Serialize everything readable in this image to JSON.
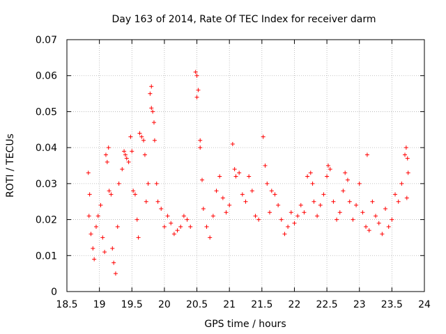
{
  "chart_data": {
    "type": "scatter",
    "title": "Day 163 of 2014, Rate Of TEC Index for receiver darm",
    "xlabel": "GPS time / hours",
    "ylabel": "ROTI / TECUs",
    "xlim": [
      18.5,
      24
    ],
    "ylim": [
      0,
      0.07
    ],
    "xticks": [
      18.5,
      19,
      19.5,
      20,
      20.5,
      21,
      21.5,
      22,
      22.5,
      23,
      23.5,
      24
    ],
    "xtick_labels": [
      "18.5",
      "19",
      "19.5",
      "20",
      "20.5",
      "21",
      "21.5",
      "22",
      "22.5",
      "23",
      "23.5",
      "24"
    ],
    "yticks": [
      0,
      0.01,
      0.02,
      0.03,
      0.04,
      0.05,
      0.06,
      0.07
    ],
    "ytick_labels": [
      "0",
      "0.01",
      "0.02",
      "0.03",
      "0.04",
      "0.05",
      "0.06",
      "0.07"
    ],
    "grid": true,
    "marker": "+",
    "color": "#ff0000",
    "series": [
      {
        "name": "ROTI",
        "points": [
          [
            18.83,
            0.033
          ],
          [
            18.85,
            0.027
          ],
          [
            18.84,
            0.021
          ],
          [
            18.87,
            0.016
          ],
          [
            18.9,
            0.012
          ],
          [
            18.92,
            0.009
          ],
          [
            18.95,
            0.018
          ],
          [
            18.98,
            0.021
          ],
          [
            19.02,
            0.024
          ],
          [
            19.05,
            0.015
          ],
          [
            19.08,
            0.011
          ],
          [
            19.1,
            0.038
          ],
          [
            19.12,
            0.036
          ],
          [
            19.14,
            0.04
          ],
          [
            19.15,
            0.028
          ],
          [
            19.18,
            0.027
          ],
          [
            19.2,
            0.012
          ],
          [
            19.22,
            0.008
          ],
          [
            19.25,
            0.005
          ],
          [
            19.28,
            0.018
          ],
          [
            19.3,
            0.03
          ],
          [
            19.35,
            0.034
          ],
          [
            19.38,
            0.039
          ],
          [
            19.4,
            0.038
          ],
          [
            19.42,
            0.037
          ],
          [
            19.45,
            0.036
          ],
          [
            19.48,
            0.043
          ],
          [
            19.5,
            0.039
          ],
          [
            19.52,
            0.028
          ],
          [
            19.55,
            0.027
          ],
          [
            19.58,
            0.02
          ],
          [
            19.6,
            0.015
          ],
          [
            19.62,
            0.044
          ],
          [
            19.65,
            0.043
          ],
          [
            19.68,
            0.042
          ],
          [
            19.7,
            0.038
          ],
          [
            19.72,
            0.025
          ],
          [
            19.75,
            0.03
          ],
          [
            19.78,
            0.055
          ],
          [
            19.8,
            0.057
          ],
          [
            19.8,
            0.051
          ],
          [
            19.82,
            0.05
          ],
          [
            19.84,
            0.047
          ],
          [
            19.85,
            0.042
          ],
          [
            19.88,
            0.03
          ],
          [
            19.9,
            0.025
          ],
          [
            19.95,
            0.023
          ],
          [
            20.0,
            0.018
          ],
          [
            20.05,
            0.021
          ],
          [
            20.1,
            0.019
          ],
          [
            20.15,
            0.016
          ],
          [
            20.2,
            0.017
          ],
          [
            20.25,
            0.018
          ],
          [
            20.3,
            0.021
          ],
          [
            20.35,
            0.02
          ],
          [
            20.4,
            0.018
          ],
          [
            20.48,
            0.061
          ],
          [
            20.5,
            0.06
          ],
          [
            20.52,
            0.056
          ],
          [
            20.5,
            0.054
          ],
          [
            20.55,
            0.042
          ],
          [
            20.55,
            0.04
          ],
          [
            20.58,
            0.031
          ],
          [
            20.6,
            0.023
          ],
          [
            20.65,
            0.018
          ],
          [
            20.7,
            0.015
          ],
          [
            20.75,
            0.021
          ],
          [
            20.8,
            0.028
          ],
          [
            20.85,
            0.032
          ],
          [
            20.9,
            0.026
          ],
          [
            20.95,
            0.022
          ],
          [
            21.0,
            0.024
          ],
          [
            21.05,
            0.041
          ],
          [
            21.08,
            0.034
          ],
          [
            21.1,
            0.032
          ],
          [
            21.15,
            0.033
          ],
          [
            21.2,
            0.027
          ],
          [
            21.25,
            0.025
          ],
          [
            21.3,
            0.032
          ],
          [
            21.35,
            0.028
          ],
          [
            21.4,
            0.021
          ],
          [
            21.45,
            0.02
          ],
          [
            21.52,
            0.043
          ],
          [
            21.55,
            0.035
          ],
          [
            21.58,
            0.03
          ],
          [
            21.62,
            0.022
          ],
          [
            21.65,
            0.028
          ],
          [
            21.7,
            0.027
          ],
          [
            21.75,
            0.024
          ],
          [
            21.8,
            0.02
          ],
          [
            21.85,
            0.016
          ],
          [
            21.9,
            0.018
          ],
          [
            21.95,
            0.022
          ],
          [
            22.0,
            0.019
          ],
          [
            22.05,
            0.021
          ],
          [
            22.1,
            0.024
          ],
          [
            22.15,
            0.022
          ],
          [
            22.2,
            0.032
          ],
          [
            22.25,
            0.033
          ],
          [
            22.28,
            0.03
          ],
          [
            22.3,
            0.025
          ],
          [
            22.35,
            0.021
          ],
          [
            22.4,
            0.024
          ],
          [
            22.45,
            0.027
          ],
          [
            22.5,
            0.032
          ],
          [
            22.52,
            0.035
          ],
          [
            22.55,
            0.034
          ],
          [
            22.6,
            0.025
          ],
          [
            22.65,
            0.02
          ],
          [
            22.7,
            0.022
          ],
          [
            22.75,
            0.028
          ],
          [
            22.78,
            0.033
          ],
          [
            22.82,
            0.031
          ],
          [
            22.85,
            0.025
          ],
          [
            22.9,
            0.02
          ],
          [
            22.95,
            0.024
          ],
          [
            23.0,
            0.03
          ],
          [
            23.05,
            0.022
          ],
          [
            23.1,
            0.018
          ],
          [
            23.12,
            0.038
          ],
          [
            23.15,
            0.017
          ],
          [
            23.2,
            0.025
          ],
          [
            23.25,
            0.021
          ],
          [
            23.3,
            0.019
          ],
          [
            23.35,
            0.016
          ],
          [
            23.4,
            0.023
          ],
          [
            23.45,
            0.018
          ],
          [
            23.5,
            0.02
          ],
          [
            23.55,
            0.027
          ],
          [
            23.6,
            0.025
          ],
          [
            23.65,
            0.03
          ],
          [
            23.7,
            0.038
          ],
          [
            23.72,
            0.04
          ],
          [
            23.74,
            0.037
          ],
          [
            23.75,
            0.033
          ],
          [
            23.73,
            0.026
          ]
        ]
      }
    ]
  }
}
